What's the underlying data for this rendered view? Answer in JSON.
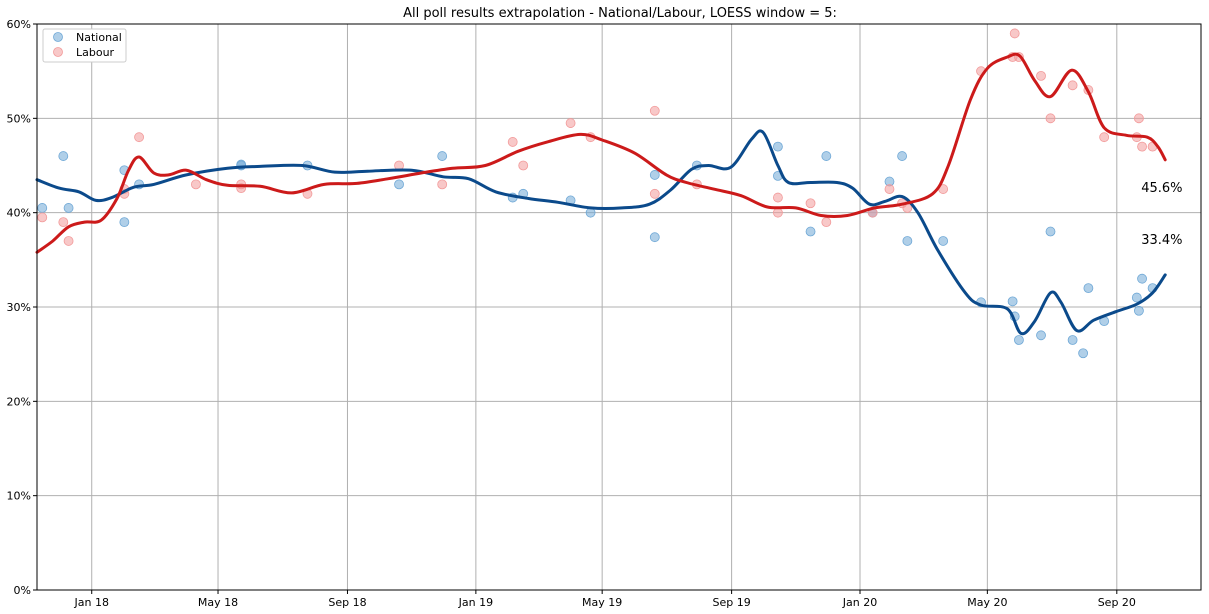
{
  "chart_data": {
    "type": "line",
    "title": "All poll results extrapolation - National/Labour, LOESS window = 5:",
    "xlabel": "",
    "ylabel": "",
    "x_range": [
      "2017-11-10",
      "2020-11-20"
    ],
    "ylim": [
      0,
      60
    ],
    "x_ticks": [
      {
        "date": "2018-01-01",
        "label": "Jan 18"
      },
      {
        "date": "2018-05-01",
        "label": "May 18"
      },
      {
        "date": "2018-09-01",
        "label": "Sep 18"
      },
      {
        "date": "2019-01-01",
        "label": "Jan 19"
      },
      {
        "date": "2019-05-01",
        "label": "May 19"
      },
      {
        "date": "2019-09-01",
        "label": "Sep 19"
      },
      {
        "date": "2020-01-01",
        "label": "Jan 20"
      },
      {
        "date": "2020-05-01",
        "label": "May 20"
      },
      {
        "date": "2020-09-01",
        "label": "Sep 20"
      }
    ],
    "y_ticks": [
      {
        "value": 0,
        "label": "0%"
      },
      {
        "value": 10,
        "label": "10%"
      },
      {
        "value": 20,
        "label": "20%"
      },
      {
        "value": 30,
        "label": "30%"
      },
      {
        "value": 40,
        "label": "40%"
      },
      {
        "value": 50,
        "label": "50%"
      },
      {
        "value": 60,
        "label": "60%"
      }
    ],
    "grid": true,
    "legend_position": "top-left",
    "series": [
      {
        "name": "National",
        "marker_color": "#6fa8d6",
        "line_color": "#0b4a8b",
        "end_label": "33.4%",
        "points": [
          {
            "x": "2017-11-15",
            "y": 40.5
          },
          {
            "x": "2017-12-05",
            "y": 46.0
          },
          {
            "x": "2017-12-10",
            "y": 40.5
          },
          {
            "x": "2018-02-01",
            "y": 44.5
          },
          {
            "x": "2018-02-01",
            "y": 39.0
          },
          {
            "x": "2018-02-15",
            "y": 43.0
          },
          {
            "x": "2018-05-23",
            "y": 45.1
          },
          {
            "x": "2018-05-23",
            "y": 45.0
          },
          {
            "x": "2018-07-25",
            "y": 45.0
          },
          {
            "x": "2018-10-20",
            "y": 43.0
          },
          {
            "x": "2018-11-30",
            "y": 46.0
          },
          {
            "x": "2019-02-05",
            "y": 41.6
          },
          {
            "x": "2019-02-15",
            "y": 42.0
          },
          {
            "x": "2019-04-01",
            "y": 41.3
          },
          {
            "x": "2019-04-20",
            "y": 40.0
          },
          {
            "x": "2019-06-20",
            "y": 44.0
          },
          {
            "x": "2019-06-20",
            "y": 37.4
          },
          {
            "x": "2019-07-30",
            "y": 45.0
          },
          {
            "x": "2019-10-15",
            "y": 47.0
          },
          {
            "x": "2019-10-15",
            "y": 43.9
          },
          {
            "x": "2019-11-15",
            "y": 38.0
          },
          {
            "x": "2019-11-30",
            "y": 46.0
          },
          {
            "x": "2020-01-13",
            "y": 40.0
          },
          {
            "x": "2020-01-29",
            "y": 43.3
          },
          {
            "x": "2020-02-10",
            "y": 46.0
          },
          {
            "x": "2020-02-15",
            "y": 37.0
          },
          {
            "x": "2020-03-20",
            "y": 37.0
          },
          {
            "x": "2020-04-25",
            "y": 30.5
          },
          {
            "x": "2020-05-25",
            "y": 30.6
          },
          {
            "x": "2020-05-27",
            "y": 29.0
          },
          {
            "x": "2020-05-31",
            "y": 26.5
          },
          {
            "x": "2020-06-21",
            "y": 27.0
          },
          {
            "x": "2020-06-30",
            "y": 38.0
          },
          {
            "x": "2020-07-21",
            "y": 26.5
          },
          {
            "x": "2020-07-31",
            "y": 25.1
          },
          {
            "x": "2020-08-05",
            "y": 32.0
          },
          {
            "x": "2020-08-20",
            "y": 28.5
          },
          {
            "x": "2020-09-20",
            "y": 31.0
          },
          {
            "x": "2020-09-22",
            "y": 29.6
          },
          {
            "x": "2020-09-25",
            "y": 33.0
          },
          {
            "x": "2020-10-05",
            "y": 32.0
          }
        ],
        "trend": [
          {
            "x": "2017-11-10",
            "y": 43.5
          },
          {
            "x": "2017-12-01",
            "y": 42.6
          },
          {
            "x": "2017-12-20",
            "y": 42.2
          },
          {
            "x": "2018-01-05",
            "y": 41.3
          },
          {
            "x": "2018-01-20",
            "y": 41.6
          },
          {
            "x": "2018-02-10",
            "y": 42.7
          },
          {
            "x": "2018-03-01",
            "y": 43.0
          },
          {
            "x": "2018-04-01",
            "y": 44.0
          },
          {
            "x": "2018-05-10",
            "y": 44.7
          },
          {
            "x": "2018-06-10",
            "y": 44.9
          },
          {
            "x": "2018-07-20",
            "y": 45.0
          },
          {
            "x": "2018-08-20",
            "y": 44.3
          },
          {
            "x": "2018-09-20",
            "y": 44.4
          },
          {
            "x": "2018-11-01",
            "y": 44.5
          },
          {
            "x": "2018-12-01",
            "y": 43.8
          },
          {
            "x": "2018-12-25",
            "y": 43.6
          },
          {
            "x": "2019-01-20",
            "y": 42.2
          },
          {
            "x": "2019-02-20",
            "y": 41.5
          },
          {
            "x": "2019-03-20",
            "y": 41.1
          },
          {
            "x": "2019-04-20",
            "y": 40.5
          },
          {
            "x": "2019-05-20",
            "y": 40.5
          },
          {
            "x": "2019-06-15",
            "y": 40.9
          },
          {
            "x": "2019-07-05",
            "y": 42.4
          },
          {
            "x": "2019-07-25",
            "y": 44.6
          },
          {
            "x": "2019-08-10",
            "y": 45.0
          },
          {
            "x": "2019-08-31",
            "y": 44.8
          },
          {
            "x": "2019-09-20",
            "y": 47.8
          },
          {
            "x": "2019-10-01",
            "y": 48.5
          },
          {
            "x": "2019-10-15",
            "y": 45.0
          },
          {
            "x": "2019-10-25",
            "y": 43.2
          },
          {
            "x": "2019-11-15",
            "y": 43.2
          },
          {
            "x": "2019-12-10",
            "y": 43.2
          },
          {
            "x": "2019-12-25",
            "y": 42.6
          },
          {
            "x": "2020-01-10",
            "y": 40.9
          },
          {
            "x": "2020-01-25",
            "y": 41.2
          },
          {
            "x": "2020-02-10",
            "y": 41.7
          },
          {
            "x": "2020-02-25",
            "y": 40.0
          },
          {
            "x": "2020-03-15",
            "y": 36.0
          },
          {
            "x": "2020-04-10",
            "y": 31.5
          },
          {
            "x": "2020-04-25",
            "y": 30.2
          },
          {
            "x": "2020-05-20",
            "y": 29.8
          },
          {
            "x": "2020-06-02",
            "y": 27.2
          },
          {
            "x": "2020-06-15",
            "y": 28.5
          },
          {
            "x": "2020-06-30",
            "y": 31.5
          },
          {
            "x": "2020-07-10",
            "y": 30.5
          },
          {
            "x": "2020-07-25",
            "y": 27.5
          },
          {
            "x": "2020-08-10",
            "y": 28.6
          },
          {
            "x": "2020-08-31",
            "y": 29.5
          },
          {
            "x": "2020-09-20",
            "y": 30.3
          },
          {
            "x": "2020-10-05",
            "y": 31.5
          },
          {
            "x": "2020-10-17",
            "y": 33.4
          }
        ]
      },
      {
        "name": "Labour",
        "marker_color": "#f29a9a",
        "line_color": "#cc1a1a",
        "end_label": "45.6%",
        "points": [
          {
            "x": "2017-11-15",
            "y": 39.5
          },
          {
            "x": "2017-12-05",
            "y": 39.0
          },
          {
            "x": "2017-12-10",
            "y": 37.0
          },
          {
            "x": "2018-02-01",
            "y": 42.5
          },
          {
            "x": "2018-02-01",
            "y": 42.0
          },
          {
            "x": "2018-02-15",
            "y": 48.0
          },
          {
            "x": "2018-04-10",
            "y": 43.0
          },
          {
            "x": "2018-05-23",
            "y": 43.0
          },
          {
            "x": "2018-05-23",
            "y": 42.6
          },
          {
            "x": "2018-07-25",
            "y": 42.0
          },
          {
            "x": "2018-10-20",
            "y": 45.0
          },
          {
            "x": "2018-11-30",
            "y": 43.0
          },
          {
            "x": "2019-02-05",
            "y": 47.5
          },
          {
            "x": "2019-02-15",
            "y": 45.0
          },
          {
            "x": "2019-04-01",
            "y": 49.5
          },
          {
            "x": "2019-04-20",
            "y": 48.0
          },
          {
            "x": "2019-06-20",
            "y": 50.8
          },
          {
            "x": "2019-06-20",
            "y": 42.0
          },
          {
            "x": "2019-07-30",
            "y": 43.0
          },
          {
            "x": "2019-10-15",
            "y": 41.6
          },
          {
            "x": "2019-10-15",
            "y": 40.0
          },
          {
            "x": "2019-11-15",
            "y": 41.0
          },
          {
            "x": "2019-11-30",
            "y": 39.0
          },
          {
            "x": "2020-01-13",
            "y": 40.0
          },
          {
            "x": "2020-01-29",
            "y": 42.5
          },
          {
            "x": "2020-02-10",
            "y": 41.0
          },
          {
            "x": "2020-02-15",
            "y": 40.5
          },
          {
            "x": "2020-03-20",
            "y": 42.5
          },
          {
            "x": "2020-04-25",
            "y": 55.0
          },
          {
            "x": "2020-05-25",
            "y": 56.5
          },
          {
            "x": "2020-05-27",
            "y": 59.0
          },
          {
            "x": "2020-05-31",
            "y": 56.5
          },
          {
            "x": "2020-06-21",
            "y": 54.5
          },
          {
            "x": "2020-06-30",
            "y": 50.0
          },
          {
            "x": "2020-07-21",
            "y": 53.5
          },
          {
            "x": "2020-08-05",
            "y": 53.0
          },
          {
            "x": "2020-08-20",
            "y": 48.0
          },
          {
            "x": "2020-09-20",
            "y": 48.0
          },
          {
            "x": "2020-09-22",
            "y": 50.0
          },
          {
            "x": "2020-09-25",
            "y": 47.0
          },
          {
            "x": "2020-10-05",
            "y": 47.0
          }
        ],
        "trend": [
          {
            "x": "2017-11-10",
            "y": 35.8
          },
          {
            "x": "2017-11-25",
            "y": 37.0
          },
          {
            "x": "2017-12-10",
            "y": 38.5
          },
          {
            "x": "2017-12-25",
            "y": 39.0
          },
          {
            "x": "2018-01-10",
            "y": 39.2
          },
          {
            "x": "2018-01-25",
            "y": 41.5
          },
          {
            "x": "2018-02-05",
            "y": 44.5
          },
          {
            "x": "2018-02-15",
            "y": 45.9
          },
          {
            "x": "2018-03-01",
            "y": 44.2
          },
          {
            "x": "2018-03-15",
            "y": 44.0
          },
          {
            "x": "2018-04-01",
            "y": 44.5
          },
          {
            "x": "2018-04-20",
            "y": 43.5
          },
          {
            "x": "2018-05-10",
            "y": 42.9
          },
          {
            "x": "2018-06-10",
            "y": 42.8
          },
          {
            "x": "2018-07-10",
            "y": 42.1
          },
          {
            "x": "2018-08-10",
            "y": 43.0
          },
          {
            "x": "2018-09-10",
            "y": 43.1
          },
          {
            "x": "2018-10-10",
            "y": 43.6
          },
          {
            "x": "2018-11-10",
            "y": 44.2
          },
          {
            "x": "2018-12-10",
            "y": 44.7
          },
          {
            "x": "2019-01-10",
            "y": 45.0
          },
          {
            "x": "2019-02-10",
            "y": 46.5
          },
          {
            "x": "2019-03-10",
            "y": 47.5
          },
          {
            "x": "2019-04-10",
            "y": 48.3
          },
          {
            "x": "2019-05-01",
            "y": 47.7
          },
          {
            "x": "2019-06-01",
            "y": 46.3
          },
          {
            "x": "2019-07-01",
            "y": 44.0
          },
          {
            "x": "2019-07-20",
            "y": 43.2
          },
          {
            "x": "2019-08-15",
            "y": 42.5
          },
          {
            "x": "2019-09-10",
            "y": 41.8
          },
          {
            "x": "2019-10-05",
            "y": 40.6
          },
          {
            "x": "2019-11-01",
            "y": 40.5
          },
          {
            "x": "2019-11-25",
            "y": 39.7
          },
          {
            "x": "2019-12-20",
            "y": 39.7
          },
          {
            "x": "2020-01-15",
            "y": 40.5
          },
          {
            "x": "2020-02-10",
            "y": 40.9
          },
          {
            "x": "2020-03-10",
            "y": 42.0
          },
          {
            "x": "2020-03-25",
            "y": 45.0
          },
          {
            "x": "2020-04-15",
            "y": 52.0
          },
          {
            "x": "2020-05-01",
            "y": 55.3
          },
          {
            "x": "2020-05-20",
            "y": 56.5
          },
          {
            "x": "2020-06-01",
            "y": 56.6
          },
          {
            "x": "2020-06-15",
            "y": 54.0
          },
          {
            "x": "2020-06-30",
            "y": 52.3
          },
          {
            "x": "2020-07-20",
            "y": 55.1
          },
          {
            "x": "2020-08-05",
            "y": 52.8
          },
          {
            "x": "2020-08-20",
            "y": 49.0
          },
          {
            "x": "2020-09-10",
            "y": 48.2
          },
          {
            "x": "2020-09-30",
            "y": 48.0
          },
          {
            "x": "2020-10-10",
            "y": 47.0
          },
          {
            "x": "2020-10-17",
            "y": 45.6
          }
        ]
      }
    ]
  }
}
